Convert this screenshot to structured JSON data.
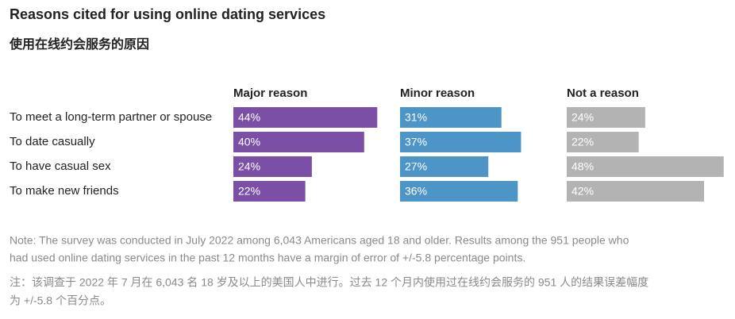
{
  "chart_data": {
    "type": "bar",
    "title": "Reasons cited for using online dating services",
    "subtitle": "使用在线约会服务的原因",
    "categories": [
      "To meet a long-term partner or spouse",
      "To date casually",
      "To have casual sex",
      "To make new friends"
    ],
    "series": [
      {
        "name": "Major reason",
        "color": "#7b4fa6",
        "values": [
          44,
          40,
          24,
          22
        ],
        "value_labels": [
          "44%",
          "40%",
          "24%",
          "22%"
        ]
      },
      {
        "name": "Minor reason",
        "color": "#4e95c7",
        "values": [
          31,
          37,
          27,
          36
        ],
        "value_labels": [
          "31%",
          "37%",
          "27%",
          "36%"
        ]
      },
      {
        "name": "Not a reason",
        "color": "#b3b3b3",
        "values": [
          24,
          22,
          48,
          42
        ],
        "value_labels": [
          "24%",
          "22%",
          "48%",
          "42%"
        ]
      }
    ],
    "note": [
      "Note: The survey was conducted in July 2022 among 6,043 Americans aged 18 and older. Results among the 951 people who",
      "had used online dating services in the past 12 months have a margin of error of +/-5.8 percentage points."
    ],
    "note_zh": [
      "注：该调查于 2022 年 7 月在 6,043 名 18 岁及以上的美国人中进行。过去 12 个月内使用过在线约会服务的 951 人的结果误差幅度",
      "为 +/-5.8 个百分点。"
    ]
  }
}
